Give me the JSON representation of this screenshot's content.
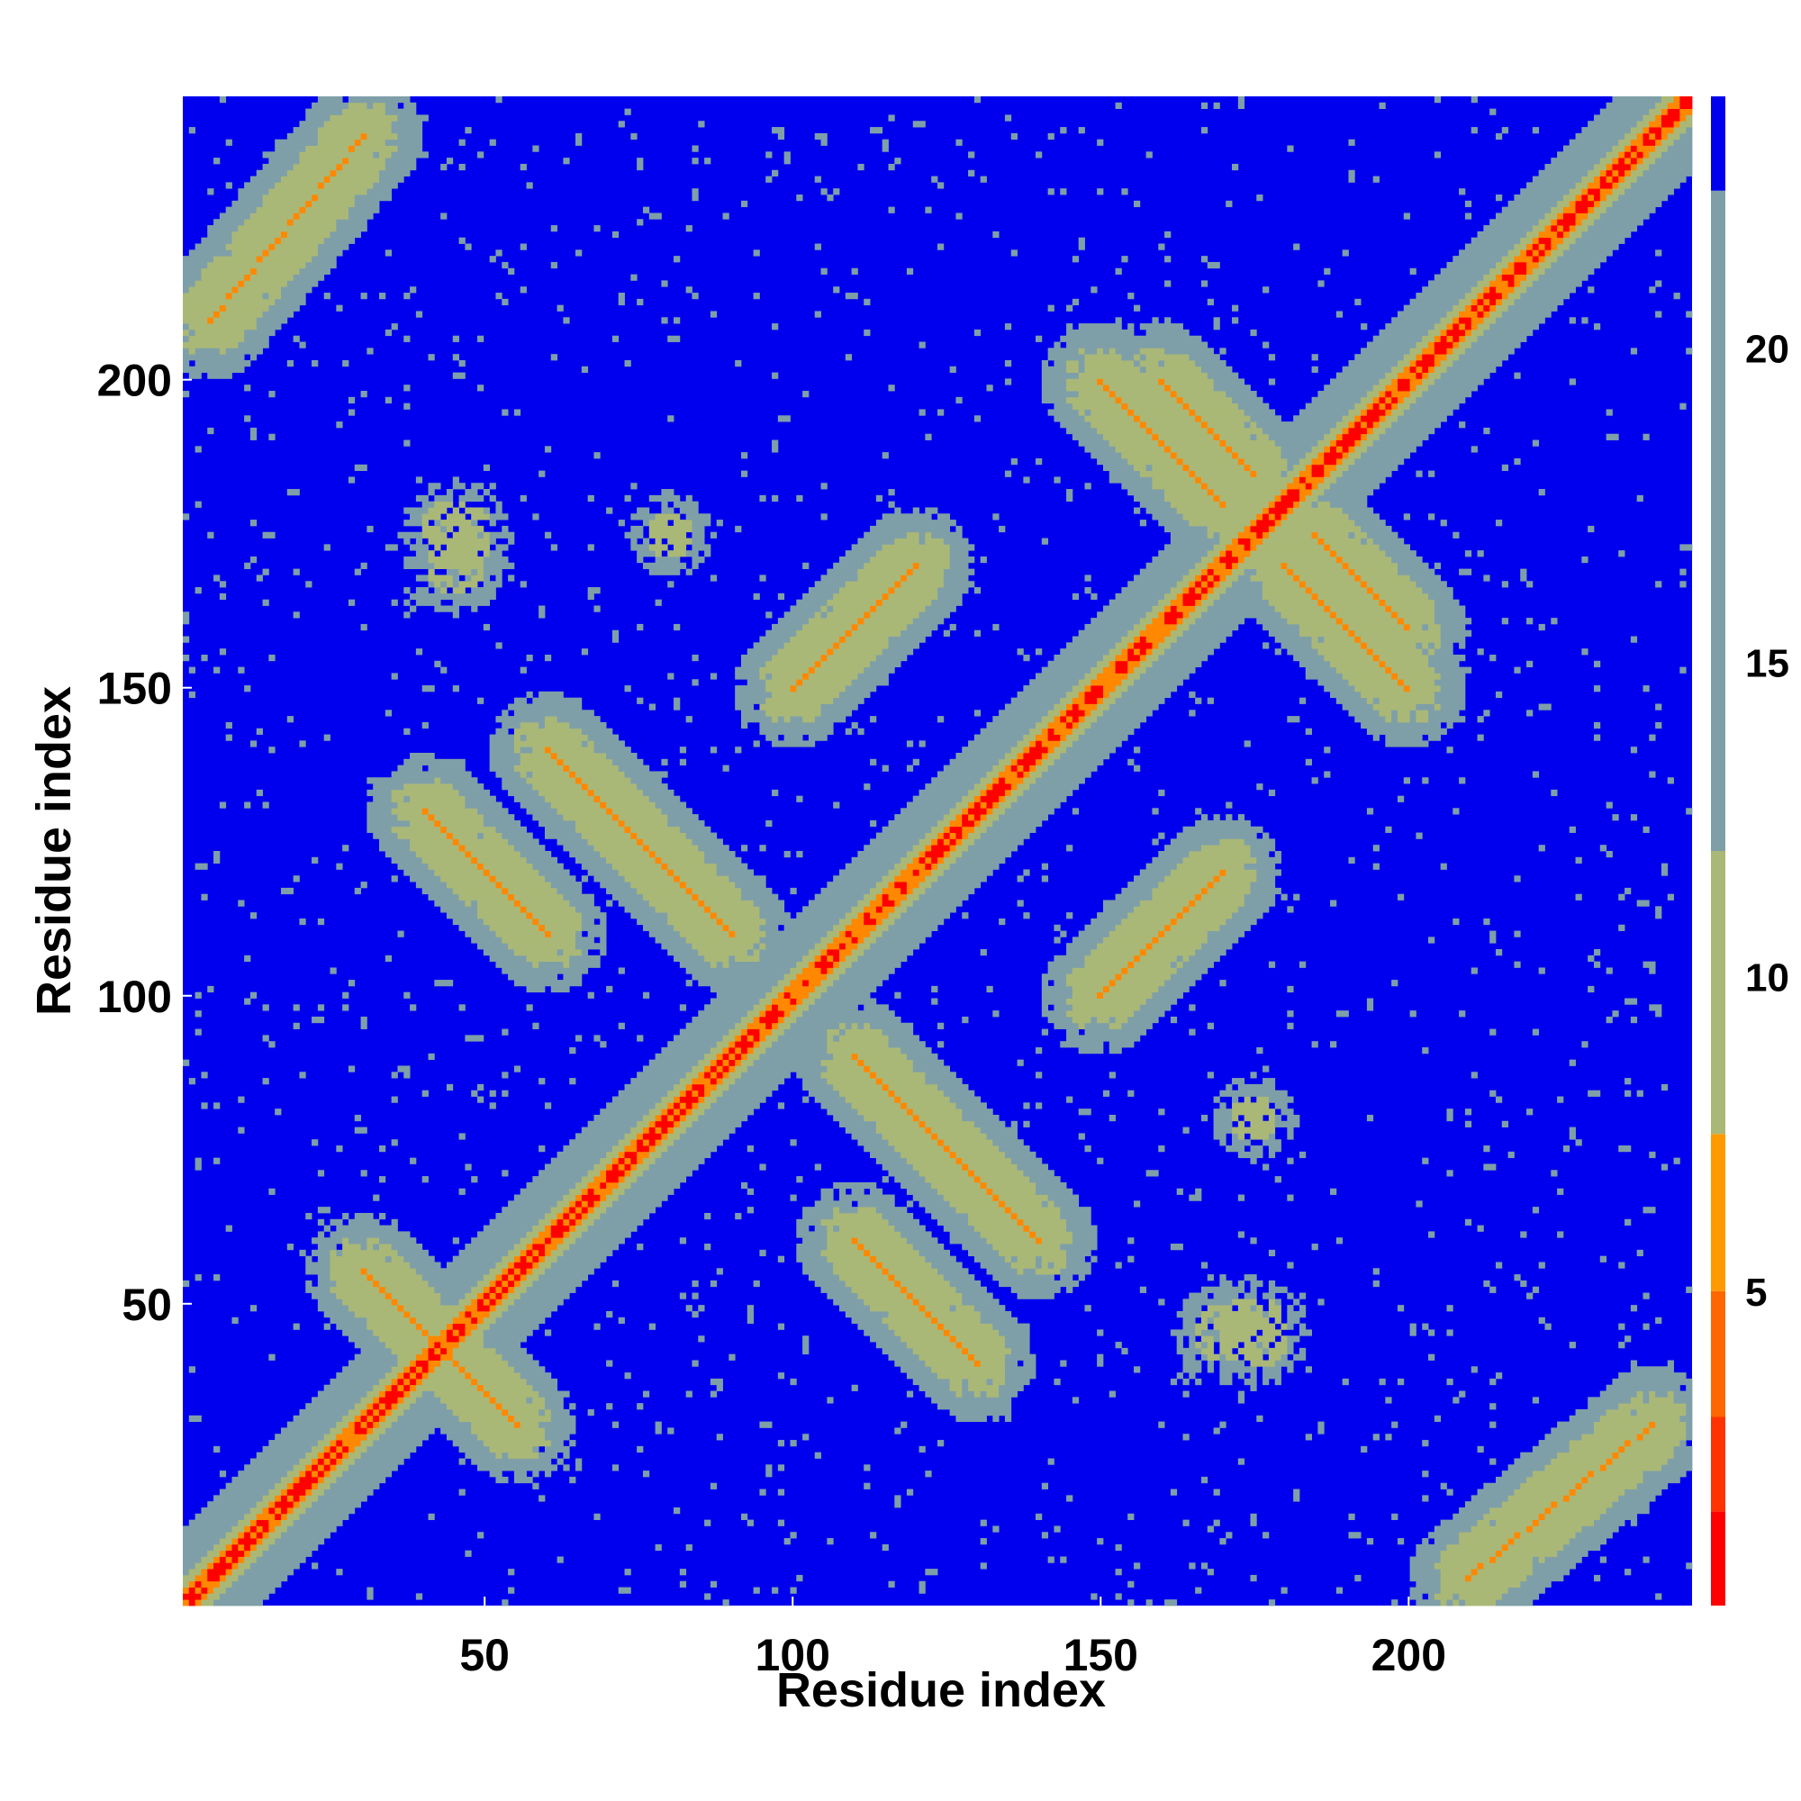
{
  "chart_data": {
    "type": "heatmap",
    "title": "",
    "xlabel": "Residue index",
    "ylabel": "Residue index",
    "x_range": [
      1,
      246
    ],
    "y_range": [
      1,
      246
    ],
    "x_ticks": [
      50,
      100,
      150,
      200
    ],
    "y_ticks": [
      50,
      100,
      150,
      200
    ],
    "colorbar": {
      "ticks": [
        5,
        10,
        15,
        20
      ],
      "range": [
        0,
        24
      ],
      "colors": [
        "#ff0000",
        "#ff3300",
        "#ff6600",
        "#ff9900",
        "#aab877",
        "#7f9fa8",
        "#0000ee"
      ],
      "bounds": [
        0,
        1.5,
        3,
        5,
        7.5,
        12,
        22.5,
        24
      ]
    },
    "cmap_colors": {
      "background": "#0000ee",
      "diagonal": "#ff0000",
      "near_contact": "#ff8800",
      "contact_band": "#aab877",
      "edge_band": "#7f9fa8"
    },
    "contact_features": [
      {
        "kind": "diagonal",
        "start": 1,
        "end": 246
      },
      {
        "kind": "antiparallel",
        "a": [
          35,
          55
        ],
        "b": [
          30,
          50
        ]
      },
      {
        "kind": "antiparallel",
        "a": [
          60,
          80
        ],
        "b": [
          120,
          140
        ]
      },
      {
        "kind": "antiparallel",
        "a": [
          75,
          90
        ],
        "b": [
          110,
          125
        ]
      },
      {
        "kind": "parallel",
        "a": [
          100,
          120
        ],
        "b": [
          150,
          170
        ]
      },
      {
        "kind": "antiparallel",
        "a": [
          150,
          170
        ],
        "b": [
          180,
          200
        ]
      },
      {
        "kind": "antiparallel",
        "a": [
          185,
          200
        ],
        "b": [
          160,
          175
        ]
      },
      {
        "kind": "antiparallel",
        "a": [
          40,
          60
        ],
        "b": [
          110,
          130
        ]
      },
      {
        "kind": "parallel",
        "a": [
          5,
          30
        ],
        "b": [
          210,
          240
        ]
      },
      {
        "kind": "patch",
        "center": [
          45,
          175
        ],
        "radius": 6
      },
      {
        "kind": "patch",
        "center": [
          170,
          45
        ],
        "radius": 5
      },
      {
        "kind": "patch",
        "center": [
          80,
          175
        ],
        "radius": 4
      }
    ]
  }
}
